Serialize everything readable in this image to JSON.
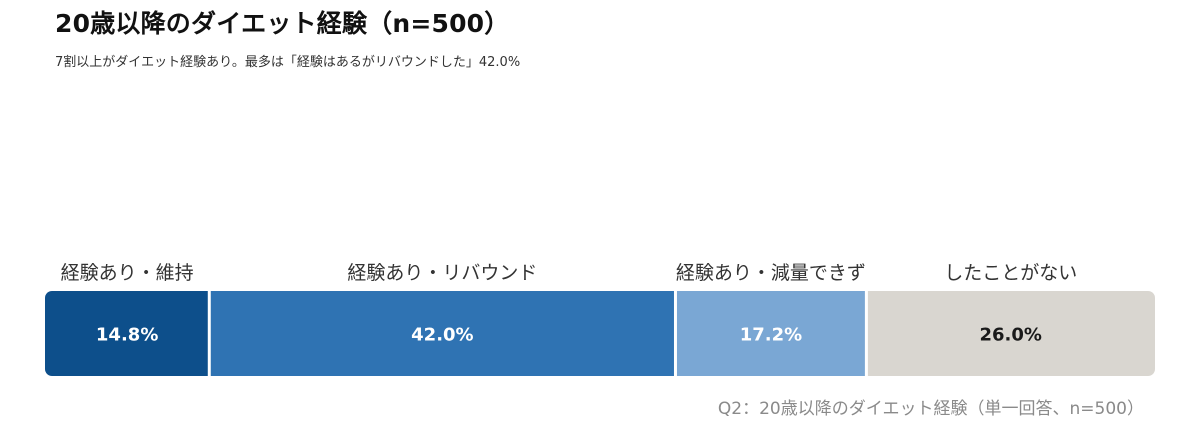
{
  "header": {
    "title": "20歳以降のダイエット経験（n=500）",
    "subtitle": "7割以上がダイエット経験あり。最多は「経験はあるがリバウンドした」42.0%"
  },
  "footer": {
    "source": "Q2：20歳以降のダイエット経験（単一回答、n=500）"
  },
  "chart_data": {
    "type": "bar",
    "orientation": "horizontal-stacked-100",
    "title": "20歳以降のダイエット経験（n=500）",
    "categories": [
      "経験あり・維持",
      "経験あり・リバウンド",
      "経験あり・減量できず",
      "したことがない"
    ],
    "values": [
      14.8,
      42.0,
      17.2,
      26.0
    ],
    "value_labels": [
      "14.8%",
      "42.0%",
      "17.2%",
      "26.0%"
    ],
    "colors": [
      "#0d4f8b",
      "#2f73b3",
      "#7aa7d4",
      "#d9d6d0"
    ],
    "label_colors": [
      "#ffffff",
      "#ffffff",
      "#ffffff",
      "#1a1a1a"
    ],
    "unit": "%",
    "total": 100
  }
}
